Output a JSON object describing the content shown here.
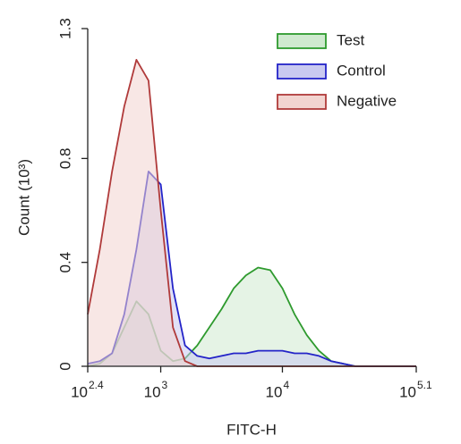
{
  "chart_data": {
    "type": "histogram-line",
    "x_label": "FITC-H",
    "y_label": "Count (10³)",
    "xscale": "log",
    "xlim": [
      251.19,
      125892.54
    ],
    "xticks": [
      {
        "value": 251.19,
        "label": "10",
        "exponent": "2.4"
      },
      {
        "value": 1000,
        "label": "10",
        "exponent": "3"
      },
      {
        "value": 10000,
        "label": "10",
        "exponent": "4"
      },
      {
        "value": 125892.54,
        "label": "10",
        "exponent": "5.1"
      }
    ],
    "ylim": [
      0,
      1.3
    ],
    "yticks": [
      0,
      0.4,
      0.8,
      1.3
    ],
    "legend": "top-right",
    "x": [
      251,
      316,
      398,
      501,
      631,
      794,
      1000,
      1259,
      1585,
      1995,
      2512,
      3162,
      3981,
      5012,
      6310,
      7943,
      10000,
      12589,
      15849,
      19953,
      25119,
      31623,
      39811,
      50119,
      63096,
      79433,
      100000,
      125893
    ],
    "series": [
      {
        "name": "Test",
        "color": "#2e9a2e",
        "fill": "#cfe9cf",
        "values": [
          0,
          0.01,
          0.05,
          0.15,
          0.25,
          0.2,
          0.06,
          0.02,
          0.03,
          0.08,
          0.15,
          0.22,
          0.3,
          0.35,
          0.38,
          0.37,
          0.3,
          0.2,
          0.12,
          0.06,
          0.02,
          0.01,
          0,
          0,
          0,
          0,
          0,
          0
        ]
      },
      {
        "name": "Control",
        "color": "#2323c8",
        "fill": "#c9c9f0",
        "values": [
          0.01,
          0.02,
          0.05,
          0.2,
          0.45,
          0.75,
          0.7,
          0.3,
          0.08,
          0.04,
          0.03,
          0.04,
          0.05,
          0.05,
          0.06,
          0.06,
          0.06,
          0.05,
          0.05,
          0.04,
          0.02,
          0.01,
          0,
          0,
          0,
          0,
          0,
          0
        ]
      },
      {
        "name": "Negative",
        "color": "#b03a3a",
        "fill": "#f2d4d0",
        "values": [
          0.2,
          0.45,
          0.75,
          1.0,
          1.18,
          1.1,
          0.6,
          0.15,
          0.02,
          0,
          0,
          0,
          0,
          0,
          0,
          0,
          0,
          0,
          0,
          0,
          0,
          0,
          0,
          0,
          0,
          0,
          0,
          0
        ]
      }
    ]
  }
}
